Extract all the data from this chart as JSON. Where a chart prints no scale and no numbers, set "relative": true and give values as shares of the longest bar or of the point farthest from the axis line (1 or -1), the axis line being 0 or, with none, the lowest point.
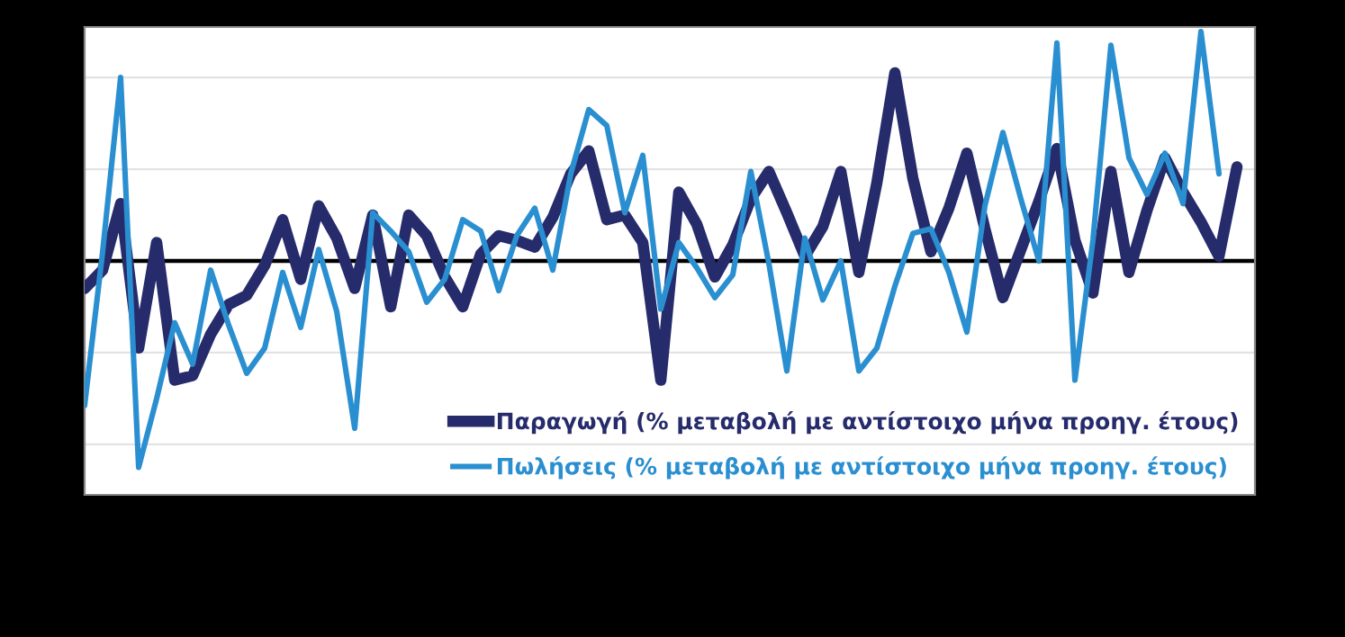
{
  "chart_data": {
    "type": "line",
    "relative": true,
    "grid": "y",
    "legend": "bottom right",
    "marker": "none",
    "line_style": "solid",
    "categories": [
      null,
      null,
      null,
      null,
      null,
      null,
      null,
      null,
      null,
      null,
      null,
      null,
      null,
      null,
      null,
      null,
      null,
      null,
      null,
      null,
      null,
      null,
      null,
      null,
      null,
      null,
      null,
      null,
      null,
      null,
      null,
      null,
      null,
      null,
      null,
      null,
      null,
      null,
      null,
      null,
      null,
      null,
      null,
      null,
      null,
      null,
      null,
      null,
      null,
      null,
      null,
      null,
      null,
      null,
      null,
      null,
      null,
      null,
      null,
      null,
      null,
      null,
      null,
      null,
      null,
      null
    ],
    "series": [
      {
        "name": "Παραγωγή (% μεταβολή με αντίστοιχο μήνα προηγ. έτους)",
        "color": "#262b6b",
        "values": [
          -0.12,
          -0.04,
          0.25,
          -0.38,
          0.08,
          -0.52,
          -0.5,
          -0.32,
          -0.19,
          -0.15,
          -0.02,
          0.18,
          -0.08,
          0.24,
          0.1,
          -0.12,
          0.2,
          -0.2,
          0.2,
          0.11,
          -0.07,
          -0.2,
          0.03,
          0.11,
          0.09,
          0.06,
          0.19,
          0.38,
          0.48,
          0.18,
          0.2,
          0.08,
          -0.52,
          0.3,
          0.16,
          -0.07,
          0.07,
          0.27,
          0.39,
          0.21,
          0.02,
          0.15,
          0.39,
          -0.05,
          0.34,
          0.82,
          0.36,
          0.04,
          0.23,
          0.47,
          0.14,
          -0.16,
          0.05,
          0.26,
          0.49,
          0.09,
          -0.14,
          0.39,
          -0.05,
          0.22,
          0.45,
          0.3,
          0.17,
          0.02,
          0.41,
          null
        ]
      },
      {
        "name": "Πωλήσεις (% μεταβολή με αντίστοιχο μήνα προηγ. έτους)",
        "color": "#2a8fd0",
        "values": [
          -0.63,
          0.04,
          0.8,
          -0.9,
          -0.6,
          -0.27,
          -0.45,
          -0.04,
          -0.28,
          -0.49,
          -0.38,
          -0.05,
          -0.29,
          0.05,
          -0.22,
          -0.73,
          0.21,
          0.13,
          0.04,
          -0.18,
          -0.08,
          0.18,
          0.13,
          -0.13,
          0.11,
          0.23,
          -0.04,
          0.38,
          0.66,
          0.59,
          0.21,
          0.46,
          -0.21,
          0.08,
          -0.03,
          -0.16,
          -0.06,
          0.39,
          -0.01,
          -0.48,
          0.1,
          -0.17,
          0.0,
          -0.48,
          -0.38,
          -0.11,
          0.12,
          0.14,
          -0.05,
          -0.31,
          0.24,
          0.56,
          0.27,
          0.0,
          0.95,
          -0.52,
          0.09,
          0.94,
          0.45,
          0.29,
          0.47,
          0.25,
          1.0,
          0.38,
          null,
          null
        ]
      }
    ]
  }
}
